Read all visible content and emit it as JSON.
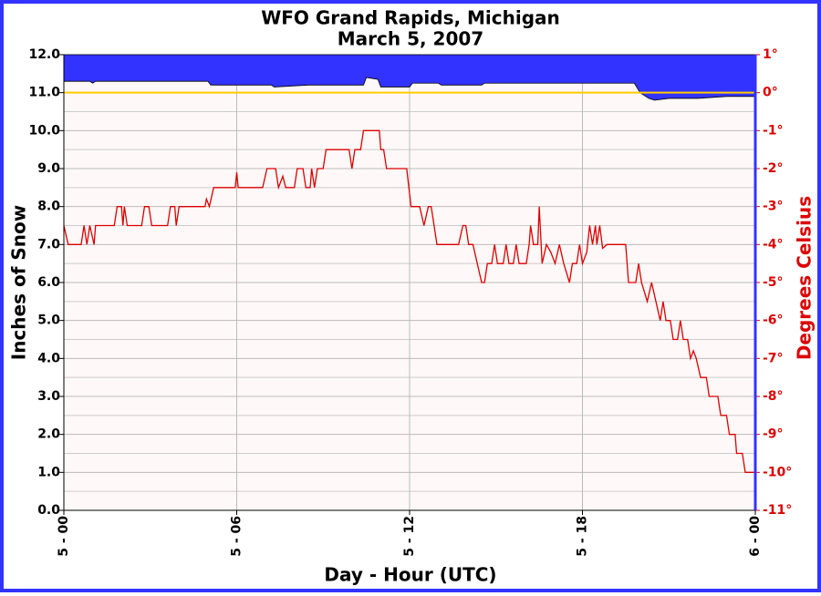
{
  "chart_data": {
    "type": "line",
    "title": "WFO Grand Rapids, Michigan",
    "subtitle": "March 5, 2007",
    "xlabel": "Day - Hour (UTC)",
    "ylabel": "Inches of Snow",
    "y2label": "Degrees Celsius",
    "xlim": [
      0,
      24
    ],
    "xticks": [
      {
        "value": 0,
        "label": "5 - 00"
      },
      {
        "value": 6,
        "label": "5 - 06"
      },
      {
        "value": 12,
        "label": "5 - 12"
      },
      {
        "value": 18,
        "label": "5 - 18"
      },
      {
        "value": 24,
        "label": "6 - 00"
      }
    ],
    "ylim": [
      0,
      12
    ],
    "yticks": [
      {
        "value": 0,
        "label": "0.0"
      },
      {
        "value": 1,
        "label": "1.0"
      },
      {
        "value": 2,
        "label": "2.0"
      },
      {
        "value": 3,
        "label": "3.0"
      },
      {
        "value": 4,
        "label": "4.0"
      },
      {
        "value": 5,
        "label": "5.0"
      },
      {
        "value": 6,
        "label": "6.0"
      },
      {
        "value": 7,
        "label": "7.0"
      },
      {
        "value": 8,
        "label": "8.0"
      },
      {
        "value": 9,
        "label": "9.0"
      },
      {
        "value": 10,
        "label": "10.0"
      },
      {
        "value": 11,
        "label": "11.0"
      },
      {
        "value": 12,
        "label": "12.0"
      }
    ],
    "y_minor_ticks": [
      0.5,
      1.5,
      2.5,
      3.5,
      4.5,
      5.5,
      6.5,
      7.5,
      8.5,
      9.5,
      10.5,
      11.5
    ],
    "y2lim": [
      -11,
      1
    ],
    "y2ticks": [
      {
        "value": 1,
        "label": "1°"
      },
      {
        "value": 0,
        "label": "0°"
      },
      {
        "value": -1,
        "label": "-1°"
      },
      {
        "value": -2,
        "label": "-2°"
      },
      {
        "value": -3,
        "label": "-3°"
      },
      {
        "value": -4,
        "label": "-4°"
      },
      {
        "value": -5,
        "label": "-5°"
      },
      {
        "value": -6,
        "label": "-6°"
      },
      {
        "value": -7,
        "label": "-7°"
      },
      {
        "value": -8,
        "label": "-8°"
      },
      {
        "value": -9,
        "label": "-9°"
      },
      {
        "value": -10,
        "label": "-10°"
      },
      {
        "value": -11,
        "label": "-11°"
      }
    ],
    "grid": true,
    "reference_line": {
      "value": 0,
      "axis": "y2",
      "color": "#ffcc00"
    },
    "series": [
      {
        "color": "#3333ff",
        "fill_from_top": true,
        "x": [
          0,
          0.9,
          1.0,
          1.1,
          5.0,
          5.1,
          7.2,
          7.3,
          8.5,
          8.6,
          10.4,
          10.5,
          10.9,
          11.0,
          12.0,
          12.1,
          13.0,
          13.1,
          14.5,
          14.6,
          19.8,
          20.0,
          20.3,
          20.5,
          21.0,
          22.0,
          23.0,
          24
        ],
        "values": [
          11.3,
          11.3,
          11.25,
          11.3,
          11.3,
          11.2,
          11.2,
          11.15,
          11.2,
          11.2,
          11.2,
          11.4,
          11.35,
          11.15,
          11.15,
          11.25,
          11.25,
          11.2,
          11.2,
          11.25,
          11.25,
          11.0,
          10.85,
          10.8,
          10.85,
          10.85,
          10.9,
          10.9
        ]
      },
      {
        "color": "#dd0000",
        "axis": "y2",
        "x": [
          0,
          0.15,
          0.6,
          0.7,
          0.8,
          0.9,
          1.05,
          1.1,
          1.75,
          1.85,
          2.0,
          2.05,
          2.1,
          2.2,
          2.7,
          2.8,
          2.95,
          3.05,
          3.6,
          3.7,
          3.85,
          3.9,
          4.0,
          4.9,
          4.95,
          5.05,
          5.2,
          5.95,
          6.0,
          6.05,
          6.9,
          7.05,
          7.35,
          7.45,
          7.6,
          7.7,
          8.0,
          8.1,
          8.3,
          8.4,
          8.55,
          8.6,
          8.7,
          8.8,
          9.0,
          9.1,
          9.9,
          10.0,
          10.1,
          10.3,
          10.4,
          10.95,
          11.0,
          11.1,
          11.2,
          11.9,
          12.05,
          12.35,
          12.5,
          12.65,
          12.75,
          12.85,
          12.95,
          13.7,
          13.85,
          13.95,
          14.05,
          14.2,
          14.35,
          14.5,
          14.6,
          14.7,
          14.85,
          14.95,
          15.05,
          15.25,
          15.35,
          15.45,
          15.6,
          15.7,
          15.8,
          16.05,
          16.15,
          16.2,
          16.3,
          16.45,
          16.5,
          16.6,
          16.75,
          16.9,
          17.05,
          17.2,
          17.35,
          17.55,
          17.65,
          17.8,
          17.9,
          18.0,
          18.15,
          18.25,
          18.35,
          18.45,
          18.5,
          18.6,
          18.7,
          18.85,
          19.5,
          19.6,
          19.85,
          19.95,
          20.05,
          20.25,
          20.4,
          20.55,
          20.7,
          20.8,
          20.9,
          21.05,
          21.15,
          21.3,
          21.4,
          21.5,
          21.65,
          21.75,
          21.85,
          21.95,
          22.1,
          22.3,
          22.4,
          22.7,
          22.8,
          23.0,
          23.1,
          23.3,
          23.35,
          23.55,
          23.65,
          24.0
        ],
        "values": [
          -3.5,
          -4,
          -4,
          -3.5,
          -4,
          -3.5,
          -4,
          -3.5,
          -3.5,
          -3,
          -3,
          -3.5,
          -3,
          -3.5,
          -3.5,
          -3,
          -3,
          -3.5,
          -3.5,
          -3,
          -3,
          -3.5,
          -3,
          -3,
          -2.8,
          -3,
          -2.5,
          -2.5,
          -2.1,
          -2.5,
          -2.5,
          -2,
          -2,
          -2.5,
          -2.2,
          -2.5,
          -2.5,
          -2,
          -2,
          -2.5,
          -2.5,
          -2,
          -2.5,
          -2,
          -2,
          -1.5,
          -1.5,
          -2,
          -1.5,
          -1.5,
          -1,
          -1,
          -1.5,
          -1.5,
          -2,
          -2,
          -3,
          -3,
          -3.5,
          -3,
          -3,
          -3.5,
          -4,
          -4,
          -3.5,
          -3.5,
          -4,
          -4,
          -4.5,
          -5,
          -5,
          -4.5,
          -4.5,
          -4,
          -4.5,
          -4.5,
          -4,
          -4.5,
          -4.5,
          -4,
          -4.5,
          -4.5,
          -4,
          -3.5,
          -4,
          -4,
          -3,
          -4.5,
          -4,
          -4.2,
          -4.5,
          -4,
          -4.5,
          -5,
          -4.5,
          -4.5,
          -4,
          -4.5,
          -4.2,
          -3.5,
          -4,
          -3.5,
          -4,
          -3.5,
          -4.1,
          -4,
          -4,
          -5,
          -5,
          -4.5,
          -5,
          -5.5,
          -5,
          -5.5,
          -6,
          -5.5,
          -6,
          -6,
          -6.5,
          -6.5,
          -6,
          -6.5,
          -6.5,
          -7,
          -6.8,
          -7,
          -7.5,
          -7.5,
          -8,
          -8,
          -8.5,
          -8.5,
          -9,
          -9,
          -9.5,
          -9.5,
          -10,
          -10
        ]
      }
    ]
  }
}
